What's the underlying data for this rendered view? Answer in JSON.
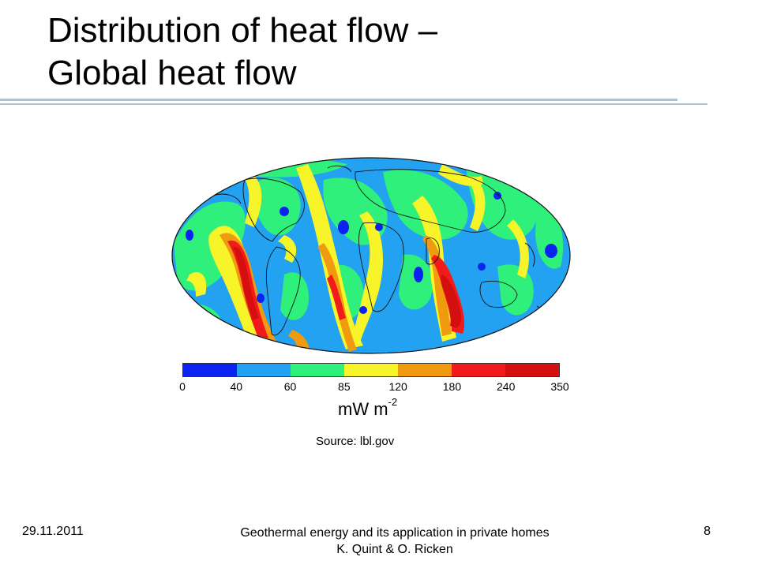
{
  "slide": {
    "title_line1": "Distribution of heat flow –",
    "title_line2": "Global heat flow"
  },
  "map": {
    "projection": "Mollweide",
    "legend": {
      "unit": "mW m",
      "unit_exponent": "-2",
      "ticks": [
        "0",
        "40",
        "60",
        "85",
        "120",
        "180",
        "240",
        "350"
      ],
      "colors": [
        "#0b22f0",
        "#22a2f0",
        "#2ef07a",
        "#f7f52a",
        "#f09a10",
        "#f21b1b",
        "#d50f0f"
      ]
    },
    "source": "Source: lbl.gov"
  },
  "footer": {
    "date": "29.11.2011",
    "line1": "Geothermal energy and its application in private homes",
    "line2": "K. Quint & O. Ricken",
    "page": "8"
  },
  "colors": {
    "rule": "#a9c3d5",
    "ocean_base": "#22a2f0"
  }
}
